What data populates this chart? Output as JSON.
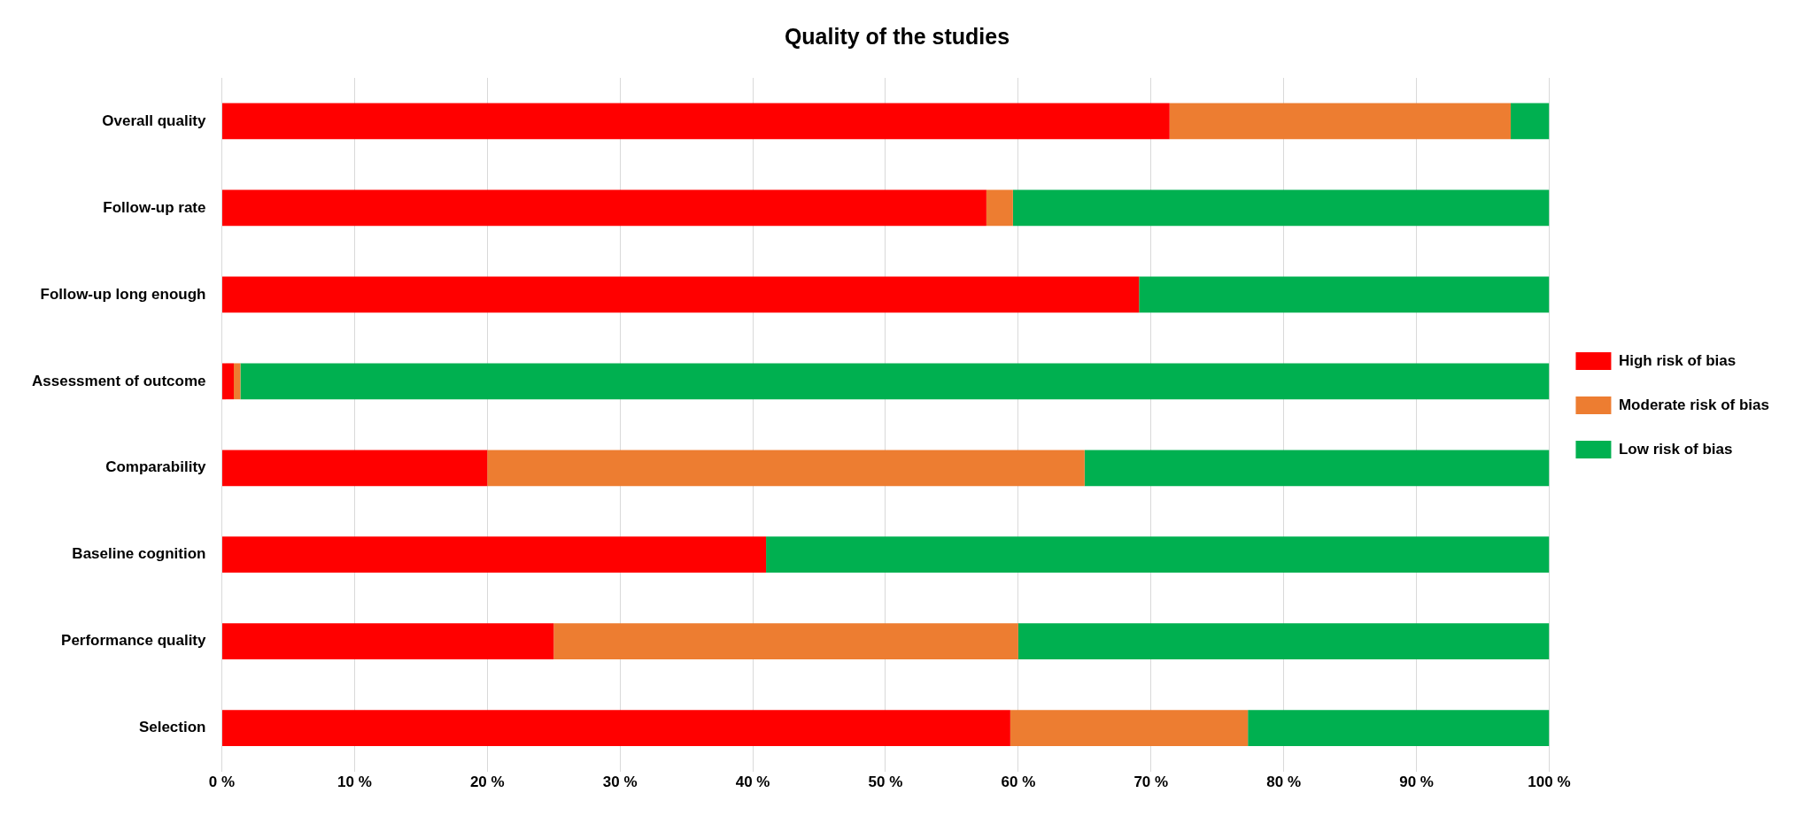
{
  "chart_data": {
    "type": "bar",
    "orientation": "horizontal",
    "stacked": true,
    "title": "Quality of the studies",
    "categories": [
      "Overall quality",
      "Follow-up rate",
      "Follow-up long enough",
      "Assessment of outcome",
      "Comparability",
      "Baseline cognition",
      "Performance quality",
      "Selection"
    ],
    "series": [
      {
        "name": "High risk of bias",
        "color": "#ff0000",
        "values": [
          71.4,
          57.6,
          69.1,
          0.9,
          20,
          41,
          25,
          59.4
        ]
      },
      {
        "name": "Moderate risk of bias",
        "color": "#ed7d31",
        "values": [
          25.7,
          2,
          0,
          0.5,
          45,
          0,
          35,
          17.9
        ]
      },
      {
        "name": "Low risk of bias",
        "color": "#00b050",
        "values": [
          2.9,
          40.4,
          30.9,
          98.6,
          35,
          59,
          40,
          22.7
        ]
      }
    ],
    "xlim": [
      0,
      100
    ],
    "xticks": [
      {
        "value": 0,
        "label": "0 %"
      },
      {
        "value": 10,
        "label": "10 %"
      },
      {
        "value": 20,
        "label": "20 %"
      },
      {
        "value": 30,
        "label": "30 %"
      },
      {
        "value": 40,
        "label": "40 %"
      },
      {
        "value": 50,
        "label": "50 %"
      },
      {
        "value": 60,
        "label": "60 %"
      },
      {
        "value": 70,
        "label": "70 %"
      },
      {
        "value": 80,
        "label": "80 %"
      },
      {
        "value": 90,
        "label": "90 %"
      },
      {
        "value": 100,
        "label": "100 %"
      }
    ],
    "grid": "x",
    "legend": "right"
  }
}
